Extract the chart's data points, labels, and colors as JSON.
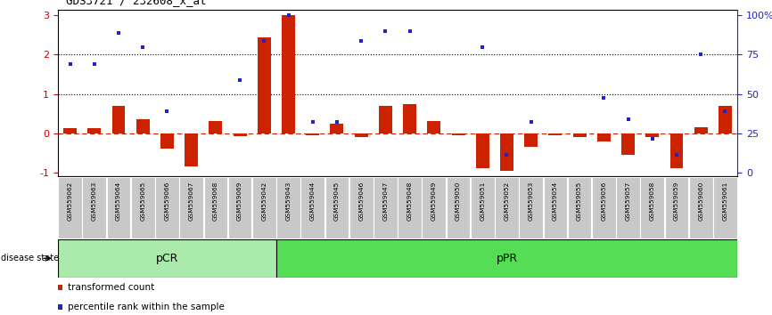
{
  "title": "GDS3721 / 232608_x_at",
  "samples": [
    "GSM559062",
    "GSM559063",
    "GSM559064",
    "GSM559065",
    "GSM559066",
    "GSM559067",
    "GSM559068",
    "GSM559069",
    "GSM559042",
    "GSM559043",
    "GSM559044",
    "GSM559045",
    "GSM559046",
    "GSM559047",
    "GSM559048",
    "GSM559049",
    "GSM559050",
    "GSM559051",
    "GSM559052",
    "GSM559053",
    "GSM559054",
    "GSM559055",
    "GSM559056",
    "GSM559057",
    "GSM559058",
    "GSM559059",
    "GSM559060",
    "GSM559061"
  ],
  "transformed_count": [
    0.13,
    0.13,
    0.7,
    0.35,
    -0.4,
    -0.85,
    0.3,
    -0.08,
    2.45,
    3.0,
    -0.05,
    0.25,
    -0.1,
    0.7,
    0.75,
    0.3,
    -0.05,
    -0.9,
    -0.95,
    -0.35,
    -0.05,
    -0.1,
    -0.22,
    -0.55,
    -0.1,
    -0.9,
    0.15,
    0.7
  ],
  "percentile_rank": [
    1.75,
    1.75,
    2.55,
    2.2,
    0.55,
    null,
    null,
    1.35,
    2.35,
    3.0,
    0.28,
    0.28,
    2.35,
    2.6,
    2.6,
    null,
    null,
    2.2,
    -0.55,
    0.28,
    null,
    null,
    0.9,
    0.35,
    -0.15,
    -0.55,
    2.0,
    0.55
  ],
  "pCR_count": 9,
  "pPR_count": 19,
  "bar_color": "#cc2200",
  "dot_color": "#2222cc",
  "zero_line_color": "#cc2200",
  "dotted_line_color": "#000000",
  "pCR_color": "#aaeaaa",
  "pPR_color": "#55dd55",
  "label_bg_color": "#c8c8c8",
  "ylim": [
    -1.1,
    3.15
  ],
  "yticks_left": [
    -1,
    0,
    1,
    2,
    3
  ],
  "left_axis_color": "#cc0000",
  "right_axis_color": "#2222cc",
  "right_labels": [
    "0",
    "25",
    "50",
    "75",
    "100%"
  ]
}
